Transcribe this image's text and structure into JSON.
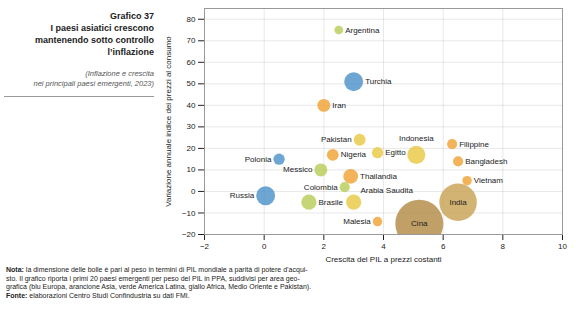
{
  "chart_data": {
    "type": "bubble",
    "title": "Grafico 37\nI paesi asiatici crescono\nmantenendo sotto controllo\nl’inflazione",
    "subtitle": "(Inflazione e crescita\nnei principali paesi emergenti, 2023)",
    "xlabel": "Crescita del PIL a prezzi costanti",
    "ylabel": "Variazione annuale indice dei prezzi al consumo",
    "labels": [
      "Cina",
      "India",
      "Turchia",
      "Russia",
      "Indonesia",
      "Arabia Saudita",
      "Brasile",
      "Thailandia",
      "Iran",
      "Messico",
      "Pakistan",
      "Nigeria",
      "Polonia",
      "Egitto",
      "Filippine",
      "Bangladesh",
      "Colombia",
      "Vietnam",
      "Malesia",
      "Argentina"
    ],
    "x": [
      5.2,
      6.5,
      3.0,
      0.05,
      5.1,
      3.0,
      1.5,
      2.9,
      2.0,
      1.9,
      3.2,
      2.3,
      0.5,
      3.8,
      6.3,
      6.5,
      2.7,
      6.8,
      3.8,
      2.5
    ],
    "values": [
      -15,
      -5,
      51,
      -2,
      17,
      -5,
      -5,
      7,
      40,
      10,
      24,
      17,
      15,
      18,
      22,
      14,
      2,
      5,
      -14,
      75
    ],
    "size": [
      1800,
      1100,
      280,
      280,
      260,
      180,
      180,
      170,
      130,
      130,
      110,
      110,
      100,
      100,
      80,
      80,
      80,
      70,
      70,
      60
    ],
    "colors": [
      "#b08840",
      "#c8a050",
      "#4a90c8",
      "#4a90c8",
      "#e8c840",
      "#e8c840",
      "#b5cc52",
      "#f0a030",
      "#f0a030",
      "#b5cc52",
      "#e8c840",
      "#f0a030",
      "#4a90c8",
      "#e8c840",
      "#f0a030",
      "#f0a030",
      "#b5cc52",
      "#f0a030",
      "#f0a030",
      "#b5cc52"
    ],
    "xlim": [
      -2,
      10
    ],
    "ylim": [
      -20,
      85
    ],
    "xticks": [
      -2,
      0,
      2,
      4,
      6,
      8,
      10
    ],
    "yticks": [
      -20,
      -10,
      0,
      10,
      20,
      30,
      40,
      50,
      60,
      70,
      80
    ],
    "grid": true,
    "notes": [
      "Nota: la dimensione delle bolle è pari al peso in termini di PIL mondiale a parità di potere d’acqui-",
      "sto. Il grafico riporta i primi 20 paesi emergenti per peso del PIL in PPA, suddivisi per area geo-",
      "grafica (blu Europa, arancione Asia, verde America Latina, giallo Africa, Medio Oriente e Pakistan).",
      "Fonte: elaborazioni Centro Studi Confindustria su dati FMI."
    ]
  }
}
